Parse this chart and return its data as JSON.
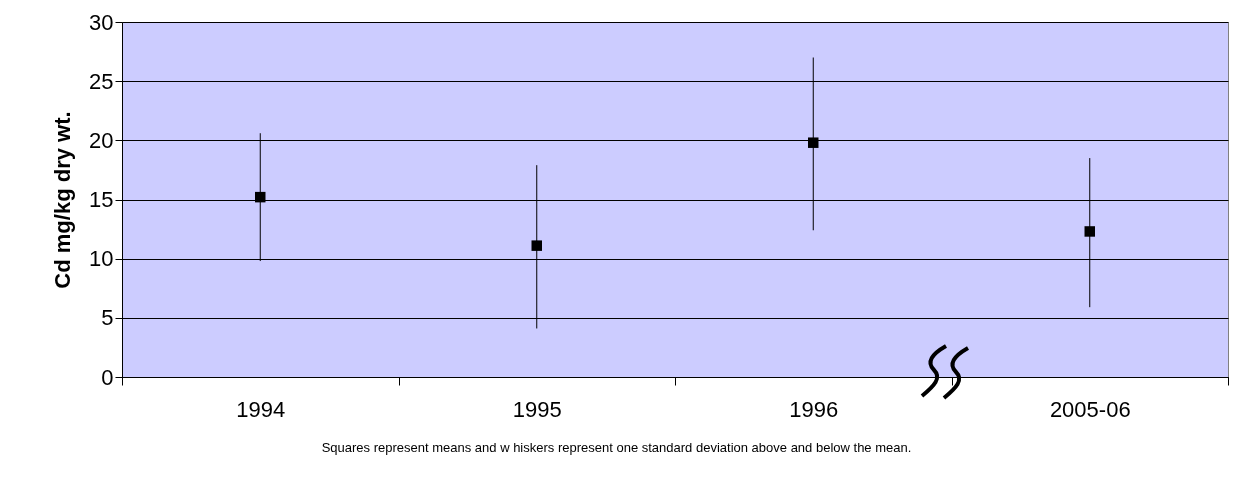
{
  "chart_data": {
    "type": "scatter",
    "ylabel": "Cd mg/kg dry wt.",
    "categories": [
      "1994",
      "1995",
      "1996",
      "2005-06"
    ],
    "series": [
      {
        "color": "#000000",
        "values": [
          15.2,
          11.1,
          19.8,
          12.3
        ],
        "errors": [
          [
            9.8,
            20.6
          ],
          [
            4.1,
            17.9
          ],
          [
            12.4,
            27.0
          ],
          [
            5.9,
            18.5
          ]
        ]
      }
    ],
    "ylim": [
      0,
      30
    ],
    "yticks": [
      0,
      5,
      10,
      15,
      20,
      25,
      30
    ],
    "grid": "y",
    "marker": "square",
    "legend": false,
    "annotations": [
      "Squares represent means and w hiskers represent one standard deviation above and below the mean."
    ]
  }
}
